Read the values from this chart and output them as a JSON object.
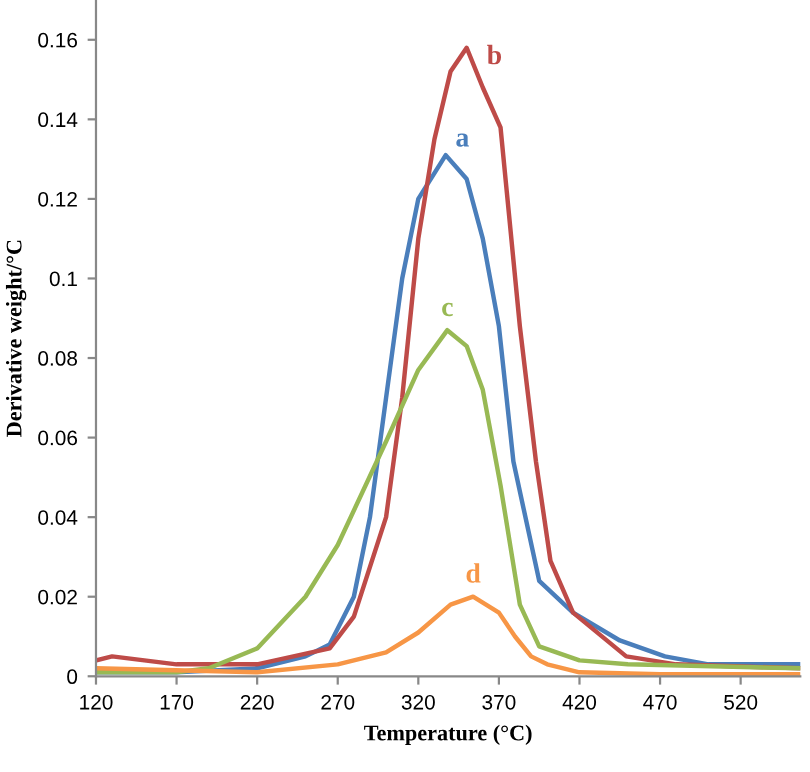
{
  "chart_data": {
    "type": "line",
    "xlabel": "Temperature (°C)",
    "ylabel": "Derivative weight/°C",
    "xlim": [
      120,
      557
    ],
    "xticks": [
      120,
      170,
      220,
      270,
      320,
      370,
      420,
      470,
      520
    ],
    "ylim": [
      0,
      0.17
    ],
    "yticks": [
      0,
      0.02,
      0.04,
      0.06,
      0.08,
      0.1,
      0.12,
      0.14,
      0.16
    ],
    "grid": false,
    "legend": false,
    "marker": "none",
    "line_style": "solid",
    "series": [
      {
        "name": "a",
        "color": "#4a7ebb",
        "x": [
          120,
          170,
          220,
          250,
          265,
          280,
          290,
          300,
          310,
          320,
          337,
          350,
          360,
          370,
          379,
          395,
          416,
          445,
          473,
          500,
          557
        ],
        "values": [
          0.001,
          0.001,
          0.002,
          0.005,
          0.008,
          0.02,
          0.04,
          0.07,
          0.1,
          0.12,
          0.131,
          0.125,
          0.11,
          0.088,
          0.054,
          0.024,
          0.016,
          0.009,
          0.005,
          0.003,
          0.003
        ]
      },
      {
        "name": "b",
        "color": "#be4b48",
        "x": [
          120,
          130,
          170,
          220,
          265,
          280,
          300,
          310,
          320,
          330,
          340,
          350,
          360,
          371,
          383,
          393,
          402,
          416,
          449,
          480,
          557
        ],
        "values": [
          0.004,
          0.005,
          0.003,
          0.003,
          0.007,
          0.015,
          0.04,
          0.07,
          0.11,
          0.135,
          0.152,
          0.158,
          0.148,
          0.138,
          0.088,
          0.054,
          0.029,
          0.016,
          0.005,
          0.003,
          0.002
        ]
      },
      {
        "name": "c",
        "color": "#98b954",
        "x": [
          120,
          170,
          190,
          220,
          250,
          270,
          300,
          320,
          338,
          350,
          360,
          371,
          383,
          395,
          420,
          450,
          557
        ],
        "values": [
          0.001,
          0.001,
          0.002,
          0.007,
          0.02,
          0.033,
          0.059,
          0.077,
          0.087,
          0.083,
          0.072,
          0.048,
          0.018,
          0.0075,
          0.004,
          0.003,
          0.002
        ]
      },
      {
        "name": "d",
        "color": "#f79646",
        "x": [
          120,
          220,
          270,
          300,
          320,
          340,
          354,
          370,
          380,
          390,
          400,
          420,
          470,
          557
        ],
        "values": [
          0.002,
          0.001,
          0.003,
          0.006,
          0.011,
          0.018,
          0.02,
          0.016,
          0.01,
          0.005,
          0.003,
          0.001,
          0.0005,
          0.0005
        ]
      }
    ]
  }
}
